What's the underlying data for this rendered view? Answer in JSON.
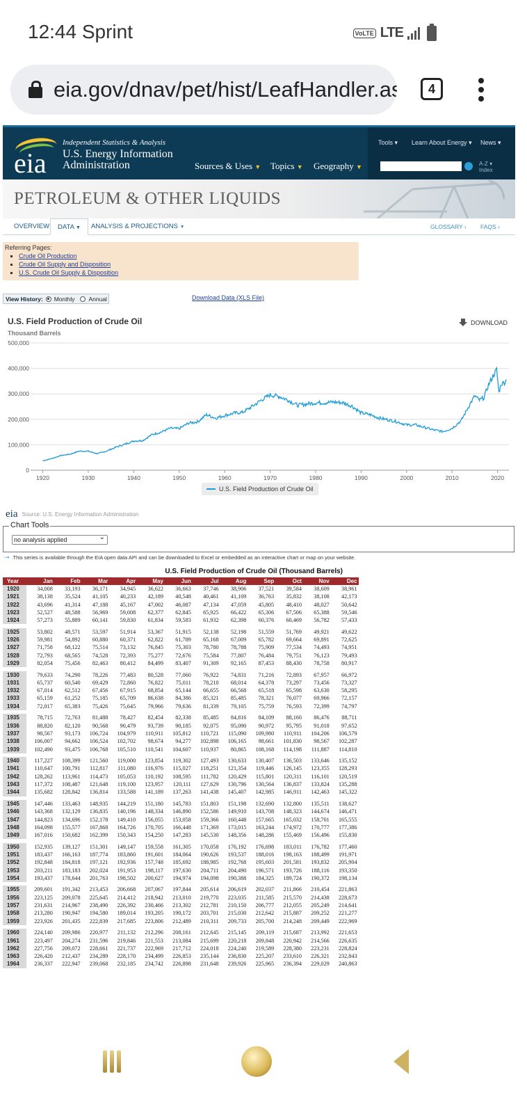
{
  "status": {
    "time": "12:44 Sprint",
    "volte": "VoLTE",
    "network": "LTE"
  },
  "browser": {
    "url": "eia.gov/dnav/pet/hist/LeafHandler.ashx",
    "tab_count": "4"
  },
  "eia": {
    "logo_text": "eia",
    "tagline": "Independent Statistics & Analysis",
    "name_line1": "U.S. Energy Information",
    "name_line2": "Administration",
    "nav": [
      "Sources & Uses",
      "Topics",
      "Geography"
    ],
    "top_links": [
      "Tools",
      "Learn About Energy",
      "News"
    ],
    "az_line1": "A-Z",
    "az_line2": "Index"
  },
  "page_title": "PETROLEUM & OTHER LIQUIDS",
  "subnav": {
    "overview": "OVERVIEW",
    "data": "DATA",
    "analysis": "ANALYSIS & PROJECTIONS",
    "glossary": "GLOSSARY ›",
    "faqs": "FAQS ›"
  },
  "referring": {
    "heading": "Referring Pages:",
    "links": [
      "Crude Oil Production",
      "Crude Oil Supply and Disposition",
      "U.S. Crude Oil Supply & Disposition"
    ]
  },
  "view_history": {
    "label": "View History:",
    "monthly": "Monthly",
    "annual": "Annual",
    "selected": "Monthly"
  },
  "download_xls": "Download Data (XLS File)",
  "chart": {
    "download_label": "DOWNLOAD",
    "source": "Source: U.S. Energy Information Administration",
    "line_color": "#1a9bd7"
  },
  "chart_data": {
    "type": "line",
    "title": "U.S. Field Production of Crude Oil",
    "ylabel": "Thousand Barrels",
    "ylim": [
      0,
      500000
    ],
    "yticks": [
      "0",
      "100,000",
      "200,000",
      "300,000",
      "400,000",
      "500,000"
    ],
    "xticks": [
      "1920",
      "1930",
      "1940",
      "1950",
      "1960",
      "1970",
      "1980",
      "1990",
      "2000",
      "2010",
      "2020"
    ],
    "xlim": [
      1919,
      2022.5
    ],
    "grid": true,
    "legend": "bottom-center",
    "series": [
      {
        "name": "U.S. Field Production of Crude Oil",
        "x": [
          1920,
          1922,
          1924,
          1926,
          1928,
          1930,
          1932,
          1934,
          1936,
          1938,
          1940,
          1942,
          1944,
          1946,
          1948,
          1950,
          1952,
          1954,
          1956,
          1958,
          1960,
          1962,
          1964,
          1966,
          1968,
          1970,
          1972,
          1974,
          1976,
          1978,
          1980,
          1982,
          1984,
          1986,
          1988,
          1990,
          1992,
          1994,
          1996,
          1998,
          2000,
          2002,
          2004,
          2006,
          2008,
          2010,
          2012,
          2014,
          2015,
          2016,
          2017,
          2018,
          2019,
          2019.8,
          2020.3,
          2020.8,
          2021.5,
          2022
        ],
        "y": [
          37000,
          46000,
          58000,
          63000,
          75000,
          75000,
          65000,
          75000,
          90000,
          102000,
          115000,
          117000,
          140000,
          150000,
          165000,
          163000,
          185000,
          190000,
          218000,
          205000,
          215000,
          224000,
          228000,
          250000,
          275000,
          296000,
          290000,
          275000,
          255000,
          260000,
          265000,
          265000,
          268000,
          265000,
          252000,
          225000,
          218000,
          205000,
          198000,
          190000,
          178000,
          178000,
          168000,
          158000,
          152000,
          165000,
          195000,
          262000,
          292000,
          275000,
          285000,
          335000,
          370000,
          395000,
          305000,
          340000,
          345000,
          355000
        ]
      }
    ]
  },
  "tools": {
    "legend": "Chart Tools",
    "select": "no analysis applied"
  },
  "api_note": "This series is available through the EIA open data API and can be downloaded to Excel or embedded as an interactive chart or map on your website.",
  "table": {
    "title": "U.S. Field Production of Crude Oil (Thousand Barrels)",
    "headers": [
      "Year",
      "Jan",
      "Feb",
      "Mar",
      "Apr",
      "May",
      "Jun",
      "Jul",
      "Aug",
      "Sep",
      "Oct",
      "Nov",
      "Dec"
    ],
    "groups": [
      [
        [
          "1920",
          "34,008",
          "33,193",
          "36,171",
          "34,945",
          "36,622",
          "36,663",
          "37,746",
          "38,906",
          "37,521",
          "39,584",
          "38,609",
          "38,961"
        ],
        [
          "1921",
          "38,138",
          "35,524",
          "41,105",
          "40,233",
          "42,189",
          "40,548",
          "40,461",
          "41,109",
          "36,763",
          "35,832",
          "38,108",
          "42,173"
        ],
        [
          "1922",
          "43,696",
          "41,314",
          "47,188",
          "45,167",
          "47,002",
          "46,087",
          "47,134",
          "47,059",
          "45,805",
          "48,410",
          "48,027",
          "50,642"
        ],
        [
          "1923",
          "52,527",
          "48,588",
          "56,969",
          "59,008",
          "62,377",
          "62,845",
          "65,925",
          "66,422",
          "65,306",
          "67,506",
          "65,388",
          "59,546"
        ],
        [
          "1924",
          "57,273",
          "55,889",
          "60,141",
          "59,830",
          "61,834",
          "59,583",
          "61,932",
          "62,398",
          "60,376",
          "60,469",
          "56,782",
          "57,433"
        ]
      ],
      [
        [
          "1925",
          "53,802",
          "48,571",
          "53,597",
          "51,914",
          "53,367",
          "51,915",
          "52,138",
          "52,198",
          "51,559",
          "51,769",
          "49,921",
          "49,622"
        ],
        [
          "1926",
          "59,981",
          "54,892",
          "60,880",
          "60,371",
          "62,822",
          "61,789",
          "65,168",
          "67,009",
          "65,782",
          "69,664",
          "69,891",
          "72,625"
        ],
        [
          "1927",
          "71,758",
          "68,122",
          "75,514",
          "73,132",
          "76,845",
          "75,303",
          "78,780",
          "78,788",
          "75,909",
          "77,534",
          "74,493",
          "74,951"
        ],
        [
          "1928",
          "72,793",
          "68,565",
          "74,528",
          "72,393",
          "75,277",
          "72,676",
          "75,584",
          "77,807",
          "76,484",
          "79,751",
          "76,123",
          "79,493"
        ],
        [
          "1929",
          "82,054",
          "75,456",
          "82,463",
          "80,412",
          "84,499",
          "83,407",
          "91,309",
          "92,165",
          "87,453",
          "88,430",
          "78,758",
          "80,917"
        ]
      ],
      [
        [
          "1930",
          "79,633",
          "74,290",
          "78,226",
          "77,483",
          "80,528",
          "77,060",
          "76,922",
          "74,831",
          "71,216",
          "72,893",
          "67,957",
          "66,972"
        ],
        [
          "1931",
          "65,737",
          "60,540",
          "69,429",
          "72,860",
          "76,822",
          "75,011",
          "78,210",
          "68,014",
          "64,378",
          "73,297",
          "73,456",
          "73,327"
        ],
        [
          "1932",
          "67,014",
          "62,512",
          "67,456",
          "67,915",
          "68,854",
          "65,144",
          "66,655",
          "66,568",
          "65,518",
          "65,598",
          "63,630",
          "58,295"
        ],
        [
          "1933",
          "65,159",
          "61,252",
          "75,185",
          "65,709",
          "86,638",
          "84,386",
          "85,321",
          "85,485",
          "78,321",
          "76,077",
          "69,966",
          "72,157"
        ],
        [
          "1934",
          "72,017",
          "65,383",
          "75,426",
          "75,645",
          "79,966",
          "79,636",
          "81,339",
          "79,105",
          "75,759",
          "76,593",
          "72,399",
          "74,797"
        ]
      ],
      [
        [
          "1935",
          "78,715",
          "72,763",
          "81,488",
          "78,427",
          "82,454",
          "82,338",
          "85,485",
          "84,816",
          "84,109",
          "88,160",
          "86,476",
          "88,711"
        ],
        [
          "1936",
          "88,820",
          "82,120",
          "90,568",
          "90,479",
          "93,739",
          "90,185",
          "92,075",
          "95,090",
          "90,972",
          "95,795",
          "91,018",
          "97,652"
        ],
        [
          "1937",
          "98,567",
          "93,173",
          "106,724",
          "104,979",
          "110,911",
          "105,812",
          "110,721",
          "115,090",
          "109,980",
          "110,911",
          "104,206",
          "106,579"
        ],
        [
          "1938",
          "106,007",
          "94,662",
          "106,524",
          "102,702",
          "98,674",
          "94,277",
          "102,898",
          "106,165",
          "98,661",
          "101,830",
          "98,567",
          "102,287"
        ],
        [
          "1939",
          "102,490",
          "93,475",
          "106,768",
          "105,510",
          "110,541",
          "104,607",
          "110,937",
          "80,865",
          "108,168",
          "114,198",
          "111,887",
          "114,810"
        ]
      ],
      [
        [
          "1940",
          "117,227",
          "108,399",
          "121,560",
          "119,000",
          "123,854",
          "119,302",
          "127,493",
          "130,633",
          "130,407",
          "136,503",
          "133,646",
          "135,152"
        ],
        [
          "1941",
          "110,647",
          "100,791",
          "112,817",
          "111,080",
          "116,976",
          "115,027",
          "118,251",
          "121,354",
          "119,446",
          "126,145",
          "123,355",
          "128,293"
        ],
        [
          "1942",
          "128,262",
          "113,961",
          "114,473",
          "105,053",
          "110,192",
          "108,595",
          "111,782",
          "120,429",
          "115,801",
          "120,311",
          "116,101",
          "120,519"
        ],
        [
          "1943",
          "117,372",
          "108,487",
          "121,648",
          "119,100",
          "123,957",
          "120,111",
          "127,629",
          "130,796",
          "130,564",
          "136,837",
          "133,824",
          "135,288"
        ],
        [
          "1944",
          "135,682",
          "128,842",
          "136,814",
          "133,588",
          "141,189",
          "137,263",
          "141,438",
          "145,407",
          "142,985",
          "146,911",
          "142,463",
          "145,322"
        ]
      ],
      [
        [
          "1945",
          "147,446",
          "133,463",
          "148,935",
          "144,219",
          "151,180",
          "145,783",
          "151,803",
          "151,198",
          "132,690",
          "132,800",
          "135,511",
          "138,627"
        ],
        [
          "1946",
          "143,368",
          "132,129",
          "136,835",
          "140,196",
          "148,334",
          "146,890",
          "152,586",
          "149,910",
          "143,708",
          "148,323",
          "144,674",
          "146,471"
        ],
        [
          "1947",
          "144,823",
          "134,696",
          "152,178",
          "149,410",
          "156,055",
          "153,058",
          "159,366",
          "160,448",
          "157,665",
          "165,032",
          "158,701",
          "165,555"
        ],
        [
          "1948",
          "164,098",
          "155,577",
          "167,868",
          "164,726",
          "170,705",
          "166,448",
          "171,369",
          "173,015",
          "163,244",
          "174,972",
          "170,777",
          "177,386"
        ],
        [
          "1949",
          "167,016",
          "150,682",
          "162,399",
          "150,343",
          "154,250",
          "147,283",
          "145,530",
          "148,356",
          "148,286",
          "155,469",
          "156,496",
          "155,830"
        ]
      ],
      [
        [
          "1950",
          "152,935",
          "139,127",
          "151,301",
          "149,147",
          "159,558",
          "161,305",
          "170,058",
          "176,192",
          "176,698",
          "183,011",
          "176,782",
          "177,460"
        ],
        [
          "1951",
          "183,437",
          "166,163",
          "187,774",
          "183,860",
          "191,601",
          "184,064",
          "190,626",
          "193,537",
          "188,016",
          "198,163",
          "188,499",
          "191,971"
        ],
        [
          "1952",
          "192,848",
          "184,818",
          "197,121",
          "192,936",
          "157,748",
          "185,692",
          "188,985",
          "192,768",
          "195,603",
          "201,581",
          "193,832",
          "205,904"
        ],
        [
          "1953",
          "203,211",
          "183,183",
          "202,024",
          "191,953",
          "198,117",
          "197,630",
          "204,711",
          "204,490",
          "196,571",
          "193,726",
          "188,116",
          "193,350"
        ],
        [
          "1954",
          "193,437",
          "178,644",
          "201,763",
          "198,502",
          "200,627",
          "194,974",
          "194,098",
          "190,388",
          "184,325",
          "189,724",
          "190,372",
          "198,134"
        ]
      ],
      [
        [
          "1955",
          "209,601",
          "191,342",
          "213,453",
          "206,668",
          "207,067",
          "197,844",
          "205,614",
          "206,619",
          "202,037",
          "211,866",
          "210,454",
          "221,863"
        ],
        [
          "1956",
          "223,125",
          "209,078",
          "225,645",
          "214,412",
          "218,942",
          "213,010",
          "219,770",
          "223,035",
          "211,585",
          "215,570",
          "214,438",
          "228,673"
        ],
        [
          "1957",
          "231,631",
          "214,967",
          "238,490",
          "226,392",
          "230,466",
          "213,302",
          "212,781",
          "210,150",
          "206,777",
          "212,055",
          "205,249",
          "214,641"
        ],
        [
          "1958",
          "213,280",
          "190,947",
          "194,580",
          "189,014",
          "193,205",
          "190,172",
          "203,701",
          "215,030",
          "212,642",
          "215,887",
          "209,252",
          "221,277"
        ],
        [
          "1959",
          "223,926",
          "201,435",
          "222,839",
          "217,685",
          "223,806",
          "212,489",
          "210,311",
          "209,733",
          "205,700",
          "214,248",
          "209,449",
          "222,969"
        ]
      ],
      [
        [
          "1960",
          "224,140",
          "209,986",
          "220,977",
          "211,132",
          "212,296",
          "208,161",
          "212,645",
          "215,145",
          "209,119",
          "215,687",
          "213,992",
          "221,653"
        ],
        [
          "1961",
          "223,497",
          "204,274",
          "231,596",
          "219,846",
          "221,553",
          "213,084",
          "215,699",
          "220,218",
          "209,848",
          "220,942",
          "214,566",
          "226,635"
        ],
        [
          "1962",
          "227,756",
          "209,072",
          "228,661",
          "221,737",
          "222,969",
          "217,712",
          "224,018",
          "224,240",
          "219,589",
          "228,380",
          "223,231",
          "228,824"
        ],
        [
          "1963",
          "226,420",
          "212,437",
          "234,289",
          "228,170",
          "234,499",
          "226,853",
          "235,144",
          "236,830",
          "225,207",
          "233,610",
          "226,321",
          "232,843"
        ],
        [
          "1964",
          "236,337",
          "222,947",
          "239,068",
          "232,185",
          "234,742",
          "226,898",
          "231,648",
          "239,926",
          "225,965",
          "236,394",
          "229,029",
          "240,863"
        ]
      ]
    ]
  }
}
